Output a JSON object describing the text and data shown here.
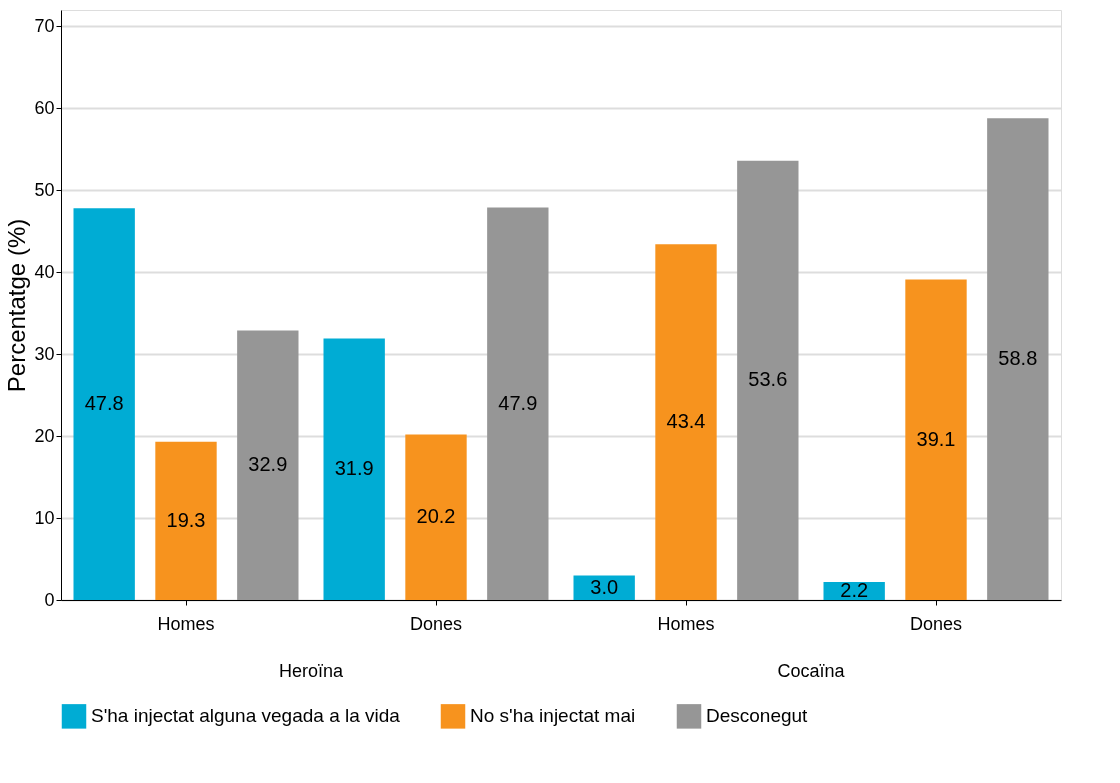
{
  "chart_data": {
    "type": "bar",
    "ylabel": "Percentatge (%)",
    "categories": [
      "Homes",
      "Dones",
      "Homes",
      "Dones"
    ],
    "series": [
      {
        "name": "S'ha injectat alguna vegada a la vida",
        "color": "#00acd4",
        "values": [
          47.8,
          31.9,
          3.0,
          2.2
        ],
        "value_labels": [
          "47.8",
          "31.9",
          "3.0",
          "2.2"
        ]
      },
      {
        "name": "No s'ha injectat mai",
        "color": "#f7931e",
        "values": [
          19.3,
          20.2,
          43.4,
          39.1
        ],
        "value_labels": [
          "19.3",
          "20.2",
          "43.4",
          "39.1"
        ]
      },
      {
        "name": "Desconegut",
        "color": "#969696",
        "values": [
          32.9,
          47.9,
          53.6,
          58.8
        ],
        "value_labels": [
          "32.9",
          "47.9",
          "53.6",
          "58.8"
        ]
      }
    ],
    "ylim": [
      0,
      72
    ],
    "yticks": [
      0,
      10,
      20,
      30,
      40,
      50,
      60,
      70
    ],
    "grid": "y",
    "legend": "bottom",
    "annotations": [
      "Heroïna",
      "Cocaïna"
    ]
  }
}
